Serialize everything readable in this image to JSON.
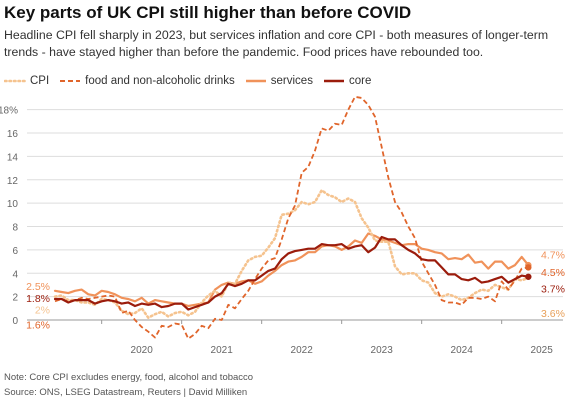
{
  "header": {
    "title": "Key parts of UK CPI still higher than before COVID",
    "subtitle": "Headline CPI fell sharply in 2023, but services inflation and core CPI - both measures of longer-term trends - have stayed higher than before the pandemic. Food prices have rebounded too."
  },
  "footer": {
    "note": "Note: Core CPI excludes energy, food, alcohol and tobacco",
    "source": "Source: ONS, LSEG Datastream, Reuters | David Milliken"
  },
  "colors": {
    "cpi": "#f5c38f",
    "food": "#e0652b",
    "services": "#f0925a",
    "core": "#9b1c0c",
    "grid": "#dddddd",
    "axis": "#999999"
  },
  "chart_data": {
    "type": "line",
    "title": "Key parts of UK CPI still higher than before COVID",
    "xlabel": "",
    "ylabel": "",
    "ylim": [
      0,
      19
    ],
    "yticks": [
      0,
      2,
      4,
      6,
      8,
      10,
      12,
      14,
      16,
      18
    ],
    "ytick_labels": [
      "0",
      "2",
      "4",
      "6",
      "8",
      "10",
      "12",
      "14",
      "16",
      "18%"
    ],
    "x_start": "2019-06",
    "x_end": "2025-06",
    "xticks": [
      2020,
      2021,
      2022,
      2023,
      2024,
      2025
    ],
    "grid": true,
    "legend": "top-left",
    "series": [
      {
        "key": "cpi",
        "name": "CPI",
        "style": "dotted",
        "start_label": "2%",
        "end_label": "3.6%",
        "values": [
          2.0,
          2.1,
          1.7,
          1.7,
          1.5,
          1.5,
          1.3,
          1.8,
          1.7,
          1.5,
          0.8,
          0.5,
          0.6,
          1.0,
          0.2,
          0.5,
          0.7,
          0.3,
          0.6,
          0.7,
          0.4,
          0.7,
          1.5,
          2.1,
          2.5,
          2.0,
          3.2,
          3.1,
          4.2,
          5.1,
          5.4,
          5.5,
          6.2,
          7.0,
          9.0,
          9.1,
          9.4,
          10.1,
          9.9,
          10.1,
          11.1,
          10.7,
          10.5,
          10.1,
          10.4,
          10.1,
          8.7,
          7.9,
          6.8,
          6.7,
          6.7,
          4.6,
          3.9,
          4.0,
          4.0,
          3.4,
          3.2,
          2.3,
          2.0,
          2.2,
          2.0,
          1.7,
          1.9,
          2.3,
          2.6,
          2.5,
          3.0,
          2.8,
          2.6,
          3.5,
          3.4,
          3.6
        ]
      },
      {
        "key": "food",
        "name": "food and non-alcoholic drinks",
        "style": "dashed",
        "start_label": "1.6%",
        "end_label": "4.5%",
        "values": [
          1.6,
          1.8,
          1.6,
          1.7,
          1.9,
          1.8,
          1.9,
          2.0,
          2.1,
          2.0,
          0.6,
          0.8,
          0.0,
          -0.6,
          -1.0,
          -1.5,
          -0.5,
          -0.6,
          -0.3,
          -0.4,
          -1.6,
          -1.2,
          -0.5,
          -0.7,
          0.1,
          0.0,
          1.3,
          1.0,
          1.8,
          2.5,
          3.5,
          4.4,
          5.1,
          5.3,
          6.9,
          8.7,
          9.8,
          12.6,
          13.1,
          14.5,
          16.4,
          16.2,
          16.8,
          16.7,
          18.0,
          19.1,
          19.0,
          18.4,
          17.4,
          14.8,
          12.2,
          10.1,
          9.2,
          8.0,
          7.0,
          5.0,
          4.0,
          3.0,
          1.7,
          1.5,
          1.5,
          1.3,
          1.9,
          1.9,
          1.8,
          2.0,
          1.6,
          3.3,
          2.6,
          3.4,
          4.4,
          4.5
        ]
      },
      {
        "key": "services",
        "name": "services",
        "style": "solid",
        "start_label": "2.5%",
        "end_label": "4.7%",
        "values": [
          2.5,
          2.4,
          2.3,
          2.5,
          2.6,
          2.2,
          2.1,
          2.5,
          2.4,
          2.2,
          1.9,
          1.8,
          1.6,
          1.9,
          1.4,
          1.7,
          1.6,
          1.5,
          1.4,
          1.4,
          1.2,
          1.3,
          1.4,
          1.5,
          2.6,
          3.0,
          3.2,
          3.1,
          3.3,
          3.4,
          3.1,
          3.3,
          3.8,
          4.2,
          4.7,
          5.0,
          5.1,
          5.4,
          5.8,
          5.8,
          6.3,
          6.4,
          6.3,
          6.0,
          6.3,
          6.8,
          6.6,
          7.4,
          7.2,
          6.9,
          6.8,
          6.6,
          6.4,
          6.5,
          6.5,
          6.1,
          6.0,
          5.8,
          5.7,
          5.2,
          5.3,
          5.2,
          5.6,
          4.9,
          5.0,
          4.4,
          5.0,
          5.0,
          4.4,
          4.7,
          5.4,
          4.7
        ]
      },
      {
        "key": "core",
        "name": "core",
        "style": "solid",
        "start_label": "1.8%",
        "end_label": "3.7%",
        "values": [
          1.8,
          1.8,
          1.5,
          1.7,
          1.7,
          1.7,
          1.4,
          1.6,
          1.7,
          1.6,
          1.4,
          1.5,
          1.2,
          1.4,
          1.3,
          1.4,
          1.1,
          1.2,
          1.4,
          1.4,
          0.9,
          1.1,
          1.3,
          1.5,
          2.0,
          2.3,
          3.1,
          2.9,
          3.1,
          3.4,
          3.4,
          3.8,
          4.2,
          4.4,
          5.2,
          5.7,
          5.9,
          6.0,
          6.1,
          6.1,
          6.5,
          6.4,
          6.4,
          6.5,
          6.1,
          6.3,
          6.4,
          5.8,
          6.2,
          7.1,
          6.9,
          6.9,
          6.4,
          6.0,
          5.7,
          5.2,
          5.1,
          5.1,
          4.5,
          3.9,
          3.9,
          3.5,
          3.4,
          3.6,
          3.2,
          3.3,
          3.5,
          3.7,
          3.2,
          3.5,
          3.8,
          3.7
        ]
      }
    ]
  }
}
